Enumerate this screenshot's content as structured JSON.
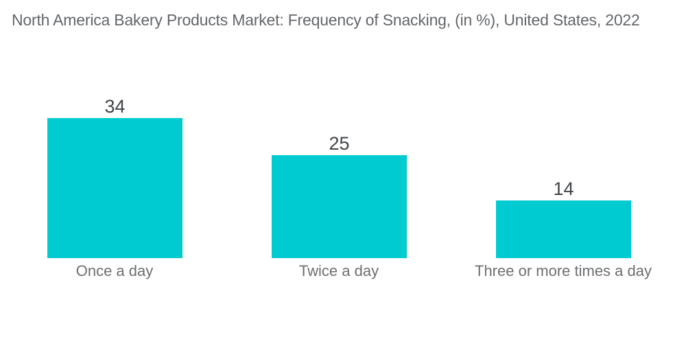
{
  "title": "North America Bakery Products Market: Frequency of Snacking, (in %), United States, 2022",
  "colors": {
    "background": "#FFFFFF",
    "bar_fill": "#00CBD1",
    "title_text": "#63666A",
    "value_label_text": "#404346",
    "category_label_text": "#6B6E71"
  },
  "chart_data": {
    "type": "bar",
    "title": "North America Bakery Products Market: Frequency of Snacking, (in %), United States, 2022",
    "categories": [
      "Once a day",
      "Twice a day",
      "Three or more times a day"
    ],
    "values": [
      34,
      25,
      14
    ],
    "unit": "%",
    "xlabel": "",
    "ylabel": "",
    "ylim": [
      0,
      40
    ],
    "grid": false,
    "legend_position": "none",
    "y_axis_visible": false,
    "x_axis_visible": false,
    "value_labels_position": "above bars",
    "bar_color": "#00CBD1",
    "orientation": "vertical"
  }
}
